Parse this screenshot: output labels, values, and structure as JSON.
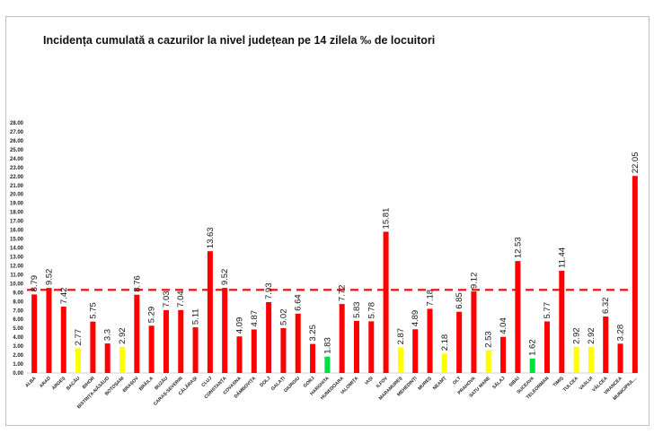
{
  "chart_data": {
    "type": "bar",
    "title": "Incidența cumulată a cazurilor la nivel județean pe 14 zilela ‰ de locuitori",
    "xlabel": "",
    "ylabel": "",
    "ylim": [
      0,
      28
    ],
    "yticks": [
      "0.00",
      "1.00",
      "2.00",
      "3.00",
      "4.00",
      "5.00",
      "6.00",
      "7.00",
      "8.00",
      "9.00",
      "10.00",
      "11.00",
      "12.00",
      "13.00",
      "14.00",
      "15.00",
      "16.00",
      "17.00",
      "18.00",
      "19.00",
      "20.00",
      "21.00",
      "22.00",
      "23.00",
      "24.00",
      "25.00",
      "26.00",
      "27.00",
      "28.00"
    ],
    "threshold": 9.3,
    "threshold_color": "#ff0000",
    "colors": {
      "red": "#ff0000",
      "yellow": "#ffff00",
      "green": "#00e040"
    },
    "categories": [
      "ALBA",
      "ARAD",
      "ARGEȘ",
      "BACĂU",
      "BIHOR",
      "BISTRIȚA-NĂSĂUD",
      "BOTOȘANI",
      "BRAȘOV",
      "BRĂILA",
      "BUZĂU",
      "CARAȘ-SEVERIN",
      "CĂLĂRAȘI",
      "CLUJ",
      "CONSTANȚA",
      "COVASNA",
      "DÂMBOVIȚA",
      "DOLJ",
      "GALAȚI",
      "GIURGIU",
      "GORJ",
      "HARGHITA",
      "HUNEDOARA",
      "IALOMIȚA",
      "IAȘI",
      "ILFOV",
      "MARAMUREȘ",
      "MEHEDINȚI",
      "MUREȘ",
      "NEAMȚ",
      "OLT",
      "PRAHOVA",
      "SATU MARE",
      "SĂLAJ",
      "SIBIU",
      "SUCEAVA",
      "TELEORMAN",
      "TIMIȘ",
      "TULCEA",
      "VASLUI",
      "VÂLCEA",
      "VRANCEA",
      "MUNICIPIUL..."
    ],
    "values": [
      8.79,
      9.52,
      7.42,
      2.77,
      5.75,
      3.3,
      2.92,
      8.76,
      5.29,
      7.03,
      7.04,
      5.11,
      13.63,
      9.52,
      4.09,
      4.87,
      7.93,
      5.02,
      6.64,
      3.25,
      1.83,
      7.72,
      5.83,
      5.78,
      15.81,
      2.87,
      4.89,
      7.18,
      2.18,
      6.85,
      9.12,
      2.53,
      4.04,
      12.53,
      1.62,
      5.77,
      11.44,
      2.92,
      2.92,
      6.32,
      3.28,
      22.05
    ],
    "value_labels": [
      "8.79",
      "9.52",
      "7.42",
      "2.77",
      "5.75",
      "3.3",
      "2.92",
      "8.76",
      "5.29",
      "7.03",
      "7.04",
      "5.11",
      "13.63",
      "9.52",
      "4.09",
      "4.87",
      "7.93",
      "5.02",
      "6.64",
      "3.25",
      "1.83",
      "7.72",
      "5.83",
      "5.78",
      "15.81",
      "2.87",
      "4.89",
      "7.18",
      "2.18",
      "6.85",
      "9.12",
      "2.53",
      "4.04",
      "12.53",
      "1.62",
      "5.77",
      "11.44",
      "2.92",
      "2.92",
      "6.32",
      "3.28",
      "22.05"
    ],
    "bar_colors": [
      "red",
      "red",
      "red",
      "yellow",
      "red",
      "red",
      "yellow",
      "red",
      "red",
      "red",
      "red",
      "red",
      "red",
      "red",
      "red",
      "red",
      "red",
      "red",
      "red",
      "red",
      "green",
      "red",
      "red",
      "red",
      "red",
      "yellow",
      "red",
      "red",
      "yellow",
      "red",
      "red",
      "yellow",
      "red",
      "red",
      "green",
      "red",
      "red",
      "yellow",
      "yellow",
      "red",
      "red",
      "red"
    ],
    "grid": false,
    "legend": "none"
  }
}
